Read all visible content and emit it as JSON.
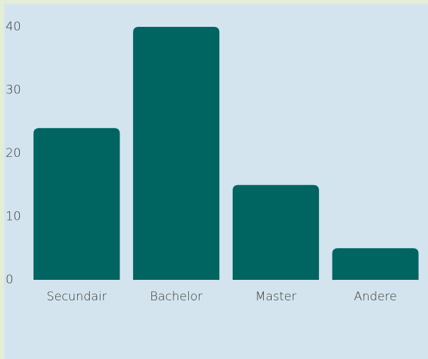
{
  "chart_data": {
    "type": "bar",
    "categories": [
      "Secundair",
      "Bachelor",
      "Master",
      "Andere"
    ],
    "values": [
      24,
      40,
      15,
      5
    ],
    "color": "#006461",
    "ylim": [
      0,
      40
    ],
    "yticks": [
      0,
      10,
      20,
      30,
      40
    ],
    "grid": false
  }
}
